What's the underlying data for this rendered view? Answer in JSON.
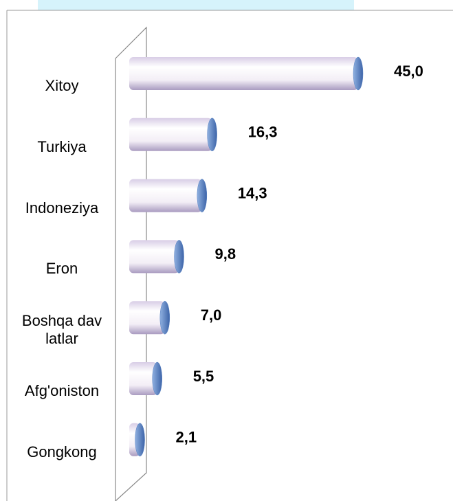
{
  "chart_data": {
    "type": "bar",
    "orientation": "horizontal",
    "categories": [
      "Xitoy",
      "Turkiya",
      "Indoneziya",
      "Eron",
      "Boshqa davlatlar",
      "Afg'oniston",
      "Gongkong"
    ],
    "values": [
      45.0,
      16.3,
      14.3,
      9.8,
      7.0,
      5.5,
      2.1
    ],
    "value_labels": [
      "45,0",
      "16,3",
      "14,3",
      "9,8",
      "7,0",
      "5,5",
      "2,1"
    ],
    "color": "#5b84c4"
  }
}
